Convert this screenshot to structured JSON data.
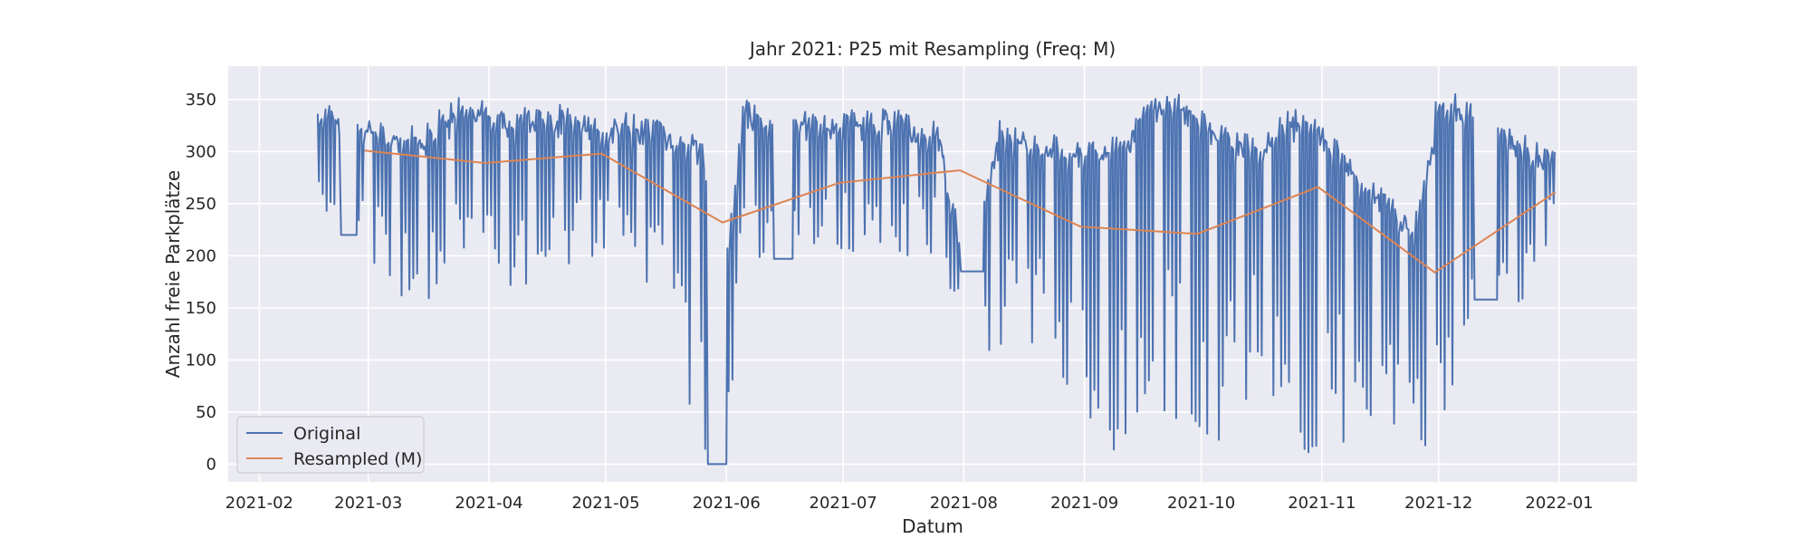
{
  "chart_data": {
    "type": "line",
    "title": "Jahr 2021: P25 mit Resampling (Freq: M)",
    "xlabel": "Datum",
    "ylabel": "Anzahl freie Parkplätze",
    "xlim": [
      "2021-01-24",
      "2022-01-21"
    ],
    "ylim": [
      -17,
      382
    ],
    "x_ticks": [
      "2021-02",
      "2021-03",
      "2021-04",
      "2021-05",
      "2021-06",
      "2021-07",
      "2021-08",
      "2021-09",
      "2021-10",
      "2021-11",
      "2021-12",
      "2022-01"
    ],
    "y_ticks": [
      0,
      50,
      100,
      150,
      200,
      250,
      300,
      350
    ],
    "grid": true,
    "legend_position": "bottom-left",
    "colors": {
      "background": "#eaeaf2",
      "grid": "#ffffff",
      "original": "#4c72b0",
      "resampled": "#dd8452"
    },
    "series": [
      {
        "name": "Original",
        "kind": "approximate-oscillating",
        "x_start": "2021-02-16",
        "x_end": "2021-12-31",
        "envelope": [
          {
            "x": "2021-02-16",
            "low": 240,
            "high": 355
          },
          {
            "x": "2021-02-25",
            "low": 220,
            "high": 335
          },
          {
            "x": "2021-03-05",
            "low": 170,
            "high": 330
          },
          {
            "x": "2021-03-15",
            "low": 150,
            "high": 325
          },
          {
            "x": "2021-03-25",
            "low": 190,
            "high": 360
          },
          {
            "x": "2021-04-05",
            "low": 160,
            "high": 345
          },
          {
            "x": "2021-04-15",
            "low": 180,
            "high": 345
          },
          {
            "x": "2021-04-25",
            "low": 190,
            "high": 345
          },
          {
            "x": "2021-05-05",
            "low": 190,
            "high": 340
          },
          {
            "x": "2021-05-15",
            "low": 160,
            "high": 330
          },
          {
            "x": "2021-05-25",
            "low": 0,
            "high": 315
          },
          {
            "x": "2021-06-01",
            "low": 0,
            "high": 200
          },
          {
            "x": "2021-06-05",
            "low": 180,
            "high": 355
          },
          {
            "x": "2021-06-15",
            "low": 190,
            "high": 330
          },
          {
            "x": "2021-06-25",
            "low": 200,
            "high": 345
          },
          {
            "x": "2021-07-05",
            "low": 190,
            "high": 345
          },
          {
            "x": "2021-07-15",
            "low": 200,
            "high": 340
          },
          {
            "x": "2021-07-25",
            "low": 200,
            "high": 330
          },
          {
            "x": "2021-08-01",
            "low": 110,
            "high": 200
          },
          {
            "x": "2021-08-10",
            "low": 90,
            "high": 330
          },
          {
            "x": "2021-08-20",
            "low": 100,
            "high": 320
          },
          {
            "x": "2021-08-30",
            "low": 40,
            "high": 310
          },
          {
            "x": "2021-09-10",
            "low": 0,
            "high": 320
          },
          {
            "x": "2021-09-22",
            "low": 50,
            "high": 365
          },
          {
            "x": "2021-10-05",
            "low": 0,
            "high": 330
          },
          {
            "x": "2021-10-15",
            "low": 80,
            "high": 320
          },
          {
            "x": "2021-10-25",
            "low": 0,
            "high": 345
          },
          {
            "x": "2021-11-05",
            "low": 20,
            "high": 315
          },
          {
            "x": "2021-11-15",
            "low": 0,
            "high": 270
          },
          {
            "x": "2021-11-25",
            "low": 20,
            "high": 240
          },
          {
            "x": "2021-12-01",
            "low": 0,
            "high": 365
          },
          {
            "x": "2021-12-10",
            "low": 160,
            "high": 345
          },
          {
            "x": "2021-12-20",
            "low": 110,
            "high": 320
          },
          {
            "x": "2021-12-31",
            "low": 240,
            "high": 310
          }
        ],
        "flat_segments": [
          {
            "from": "2021-02-22",
            "to": "2021-02-26",
            "value": 220
          },
          {
            "from": "2021-05-27",
            "to": "2021-06-01",
            "value": 0
          },
          {
            "from": "2021-06-13",
            "to": "2021-06-18",
            "value": 197
          },
          {
            "from": "2021-07-31",
            "to": "2021-08-06",
            "value": 185
          },
          {
            "from": "2021-12-10",
            "to": "2021-12-16",
            "value": 158
          }
        ]
      },
      {
        "name": "Resampled (M)",
        "x": [
          "2021-02-28",
          "2021-03-31",
          "2021-04-30",
          "2021-05-31",
          "2021-06-30",
          "2021-07-31",
          "2021-08-31",
          "2021-09-30",
          "2021-10-31",
          "2021-11-30",
          "2021-12-31"
        ],
        "values": [
          301,
          289,
          298,
          232,
          270,
          282,
          228,
          221,
          266,
          184,
          261
        ]
      }
    ]
  }
}
